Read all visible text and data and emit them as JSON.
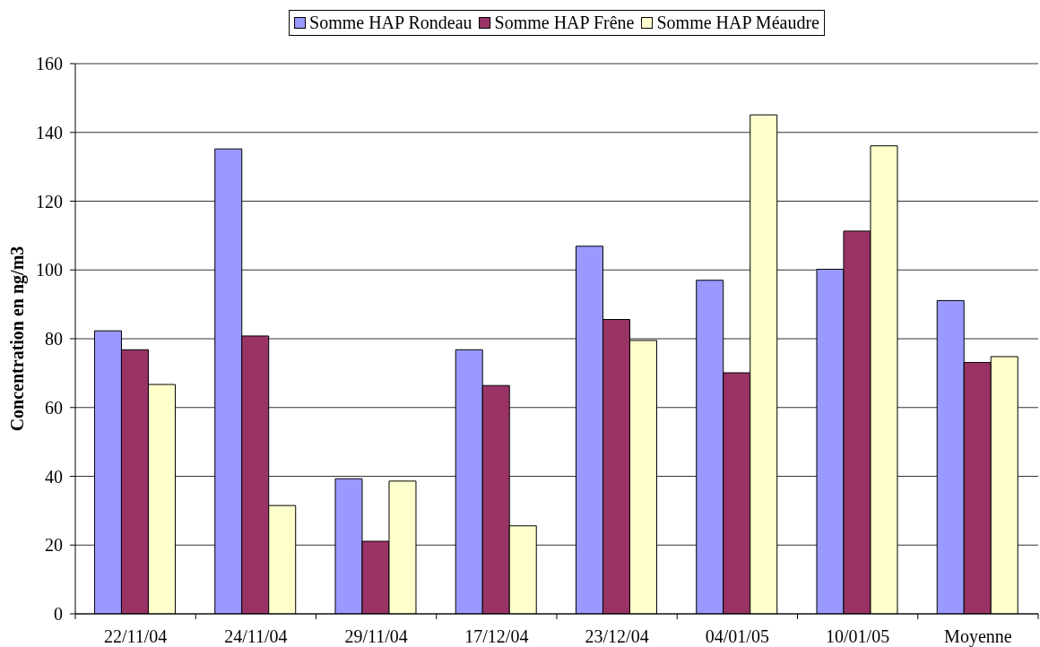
{
  "chart_data": {
    "type": "bar",
    "categories": [
      "22/11/04",
      "24/11/04",
      "29/11/04",
      "17/12/04",
      "23/12/04",
      "04/01/05",
      "10/01/05",
      "Moyenne"
    ],
    "series": [
      {
        "name": "Somme HAP Rondeau",
        "color": "#9999ff",
        "values": [
          82.3,
          135.2,
          39.3,
          76.8,
          106.9,
          97.0,
          100.2,
          91.1
        ]
      },
      {
        "name": "Somme HAP Frêne",
        "color": "#993366",
        "values": [
          76.8,
          80.8,
          21.1,
          66.4,
          85.6,
          70.1,
          111.3,
          73.1
        ]
      },
      {
        "name": "Somme HAP Méaudre",
        "color": "#ffffcc",
        "values": [
          66.7,
          31.5,
          38.6,
          25.6,
          79.5,
          145.1,
          136.1,
          74.8
        ]
      }
    ],
    "ylabel": "Concentration en ng/m3",
    "ylim": [
      0,
      160
    ],
    "yticks": [
      0,
      20,
      40,
      60,
      80,
      100,
      120,
      140,
      160
    ],
    "grid": "y",
    "legend": "top"
  }
}
